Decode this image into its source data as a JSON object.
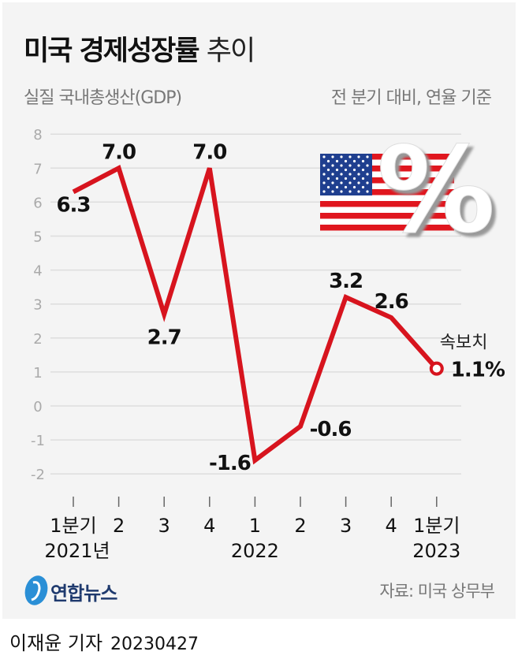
{
  "title_bold": "미국 경제성장률",
  "title_light": "추이",
  "subtitle_left": "실질 국내총생산(GDP)",
  "subtitle_right": "전 분기 대비, 연율 기준",
  "source": "자료: 미국 상무부",
  "logo_text": "연합뉴스",
  "byline": "이재윤 기자",
  "date": "20230427",
  "colors": {
    "line": "#d7141e",
    "background": "#f4f4f4"
  },
  "decorations": [
    "us-flag-icon",
    "percent-sign-icon"
  ],
  "chart_data": {
    "type": "line",
    "categories": [
      "1분기",
      "2",
      "3",
      "4",
      "1",
      "2",
      "3",
      "4",
      "1분기"
    ],
    "year_labels": [
      "2021년",
      "",
      "",
      "",
      "2022",
      "",
      "",
      "",
      "2023"
    ],
    "values": [
      6.3,
      7.0,
      2.7,
      7.0,
      -1.6,
      -0.6,
      3.2,
      2.6,
      1.1
    ],
    "data_labels": [
      "6.3",
      "7.0",
      "2.7",
      "7.0",
      "-1.6",
      "-0.6",
      "3.2",
      "2.6",
      "1.1%"
    ],
    "last_point_annotation": "속보치",
    "ylim": [
      -2,
      8
    ],
    "yticks": [
      "-2",
      "-1",
      "0",
      "1",
      "2",
      "3",
      "4",
      "5",
      "6",
      "7",
      "8"
    ],
    "grid": true
  }
}
